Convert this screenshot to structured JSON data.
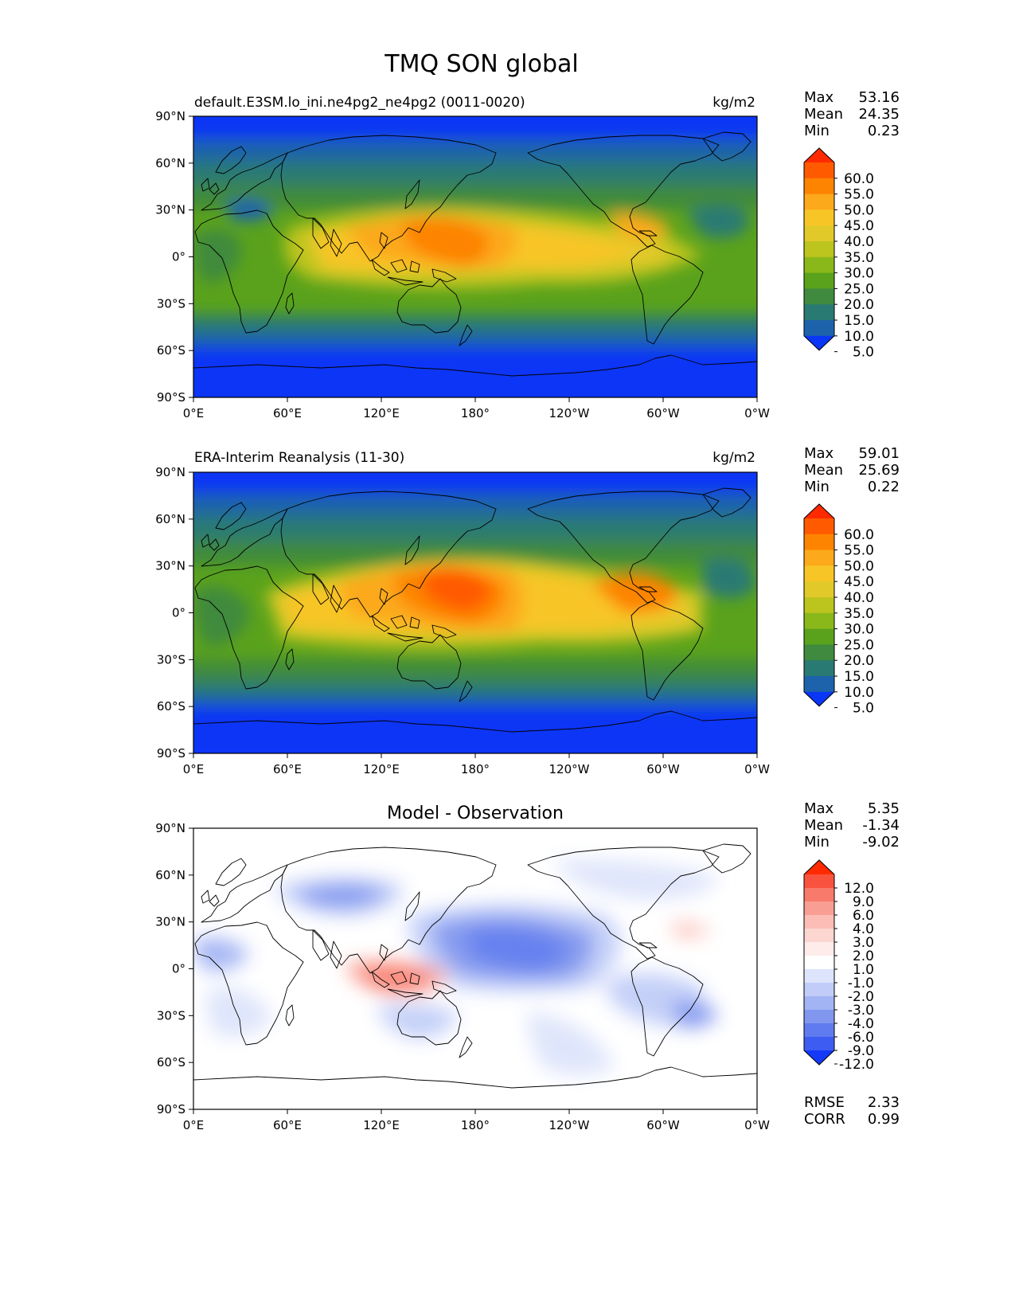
{
  "figure": {
    "title": "TMQ SON global"
  },
  "axes": {
    "lat_labels": [
      "90°N",
      "60°N",
      "30°N",
      "0°",
      "30°S",
      "60°S",
      "90°S"
    ],
    "lon_labels": [
      "0°E",
      "60°E",
      "120°E",
      "180°",
      "120°W",
      "60°W",
      "0°W"
    ]
  },
  "panels": [
    {
      "id": "model",
      "left_title": "default.E3SM.lo_ini.ne4pg2_ne4pg2 (0011-0020)",
      "center_title": "",
      "units": "kg/m2",
      "stats": [
        {
          "label": "Max",
          "value": "53.16"
        },
        {
          "label": "Mean",
          "value": "24.35"
        },
        {
          "label": "Min",
          "value": "0.23"
        }
      ],
      "colorbar": {
        "levels": [
          "60.0",
          "55.0",
          "50.0",
          "45.0",
          "40.0",
          "35.0",
          "30.0",
          "25.0",
          "20.0",
          "15.0",
          "10.0",
          "5.0"
        ],
        "colors": [
          "#ff2a00",
          "#ff5a00",
          "#fd8400",
          "#fca91b",
          "#f8c526",
          "#e2c92a",
          "#bcc41e",
          "#8ab81b",
          "#5aa21c",
          "#3f8a3e",
          "#297a73",
          "#1c63ab",
          "#0a36f5"
        ]
      }
    },
    {
      "id": "obs",
      "left_title": "ERA-Interim Reanalysis (11-30)",
      "center_title": "",
      "units": "kg/m2",
      "stats": [
        {
          "label": "Max",
          "value": "59.01"
        },
        {
          "label": "Mean",
          "value": "25.69"
        },
        {
          "label": "Min",
          "value": "0.22"
        }
      ],
      "colorbar": {
        "levels": [
          "60.0",
          "55.0",
          "50.0",
          "45.0",
          "40.0",
          "35.0",
          "30.0",
          "25.0",
          "20.0",
          "15.0",
          "10.0",
          "5.0"
        ],
        "colors": [
          "#ff2a00",
          "#ff5a00",
          "#fd8400",
          "#fca91b",
          "#f8c526",
          "#e2c92a",
          "#bcc41e",
          "#8ab81b",
          "#5aa21c",
          "#3f8a3e",
          "#297a73",
          "#1c63ab",
          "#0a36f5"
        ]
      }
    },
    {
      "id": "diff",
      "left_title": "",
      "center_title": "Model - Observation",
      "units": "",
      "stats": [
        {
          "label": "Max",
          "value": "5.35"
        },
        {
          "label": "Mean",
          "value": "-1.34"
        },
        {
          "label": "Min",
          "value": "-9.02"
        }
      ],
      "colorbar": {
        "levels": [
          "12.0",
          "9.0",
          "6.0",
          "4.0",
          "3.0",
          "2.0",
          "1.0",
          "-1.0",
          "-2.0",
          "-3.0",
          "-4.0",
          "-6.0",
          "-9.0",
          "-12.0"
        ],
        "colors": [
          "#ff2a00",
          "#f9533f",
          "#f87a6a",
          "#f99e93",
          "#fbbdb5",
          "#fcd6d0",
          "#fdecea",
          "#ffffff",
          "#dde4fb",
          "#c1cdf8",
          "#a3b4f4",
          "#8197ef",
          "#5f7bef",
          "#3d5cf2",
          "#1539f8"
        ]
      },
      "footer_stats": [
        {
          "label": "RMSE",
          "value": "2.33"
        },
        {
          "label": "CORR",
          "value": "0.99"
        }
      ]
    }
  ]
}
